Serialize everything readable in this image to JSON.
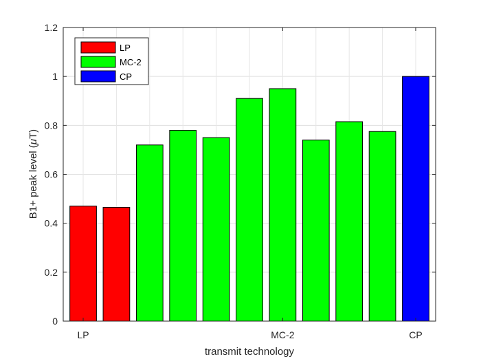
{
  "chart_data": {
    "type": "bar",
    "title": "",
    "xlabel": "transmit technology",
    "ylabel_prefix": "B1+ peak level (",
    "ylabel_mu": "μ",
    "ylabel_suffix": "T)",
    "ylim": [
      0,
      1.2
    ],
    "yticks": [
      0,
      0.2,
      0.4,
      0.6,
      0.8,
      1,
      1.2
    ],
    "ytick_labels": [
      "0",
      "0.2",
      "0.4",
      "0.6",
      "0.8",
      "1",
      "1.2"
    ],
    "xtick_labels": [
      {
        "label": "LP",
        "pos": 1
      },
      {
        "label": "MC-2",
        "pos": 7
      },
      {
        "label": "CP",
        "pos": 11
      }
    ],
    "grid": true,
    "legend_position": "top-left",
    "bars": [
      {
        "pos": 1,
        "value": 0.47,
        "group": "LP"
      },
      {
        "pos": 2,
        "value": 0.465,
        "group": "LP"
      },
      {
        "pos": 3,
        "value": 0.72,
        "group": "MC-2"
      },
      {
        "pos": 4,
        "value": 0.78,
        "group": "MC-2"
      },
      {
        "pos": 5,
        "value": 0.75,
        "group": "MC-2"
      },
      {
        "pos": 6,
        "value": 0.91,
        "group": "MC-2"
      },
      {
        "pos": 7,
        "value": 0.95,
        "group": "MC-2"
      },
      {
        "pos": 8,
        "value": 0.74,
        "group": "MC-2"
      },
      {
        "pos": 9,
        "value": 0.815,
        "group": "MC-2"
      },
      {
        "pos": 10,
        "value": 0.775,
        "group": "MC-2"
      },
      {
        "pos": 11,
        "value": 1.0,
        "group": "CP"
      }
    ],
    "series": [
      {
        "name": "LP",
        "color": "#ff0000"
      },
      {
        "name": "MC-2",
        "color": "#00ff00"
      },
      {
        "name": "CP",
        "color": "#0000ff"
      }
    ]
  }
}
